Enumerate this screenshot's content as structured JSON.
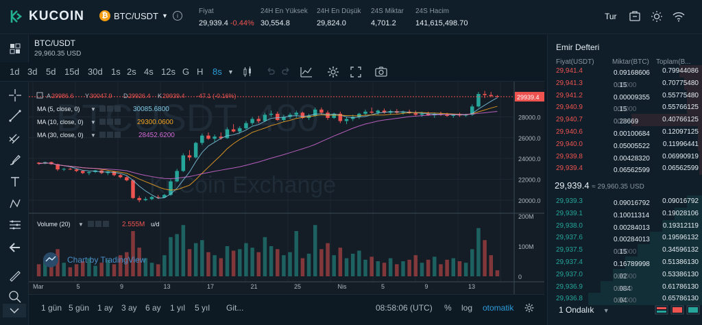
{
  "header": {
    "logo": "KUCOIN",
    "pair": "BTC/USDT",
    "coin_glyph": "₿",
    "stats": [
      {
        "label": "Fiyat",
        "value": "29,939.4",
        "change": "-0.44%"
      },
      {
        "label": "24H En Yüksek",
        "value": "30,554.8"
      },
      {
        "label": "24H En Düşük",
        "value": "29,824.0"
      },
      {
        "label": "24S Miktar",
        "value": "4,701.2"
      },
      {
        "label": "24S Hacim",
        "value": "141,615,498.70"
      }
    ],
    "language": "Tur",
    "icons": [
      "orders-icon",
      "theme-sun-icon",
      "wifi-icon"
    ]
  },
  "chart_header": {
    "symbol": "BTC/USDT",
    "price": "29,960.35 USD"
  },
  "timeframes": [
    "1d",
    "3d",
    "5d",
    "15d",
    "30d",
    "1s",
    "2s",
    "4s",
    "12s",
    "G",
    "H",
    "8s"
  ],
  "active_timeframe": "8s",
  "chart_overlay": {
    "ohlc": {
      "A": "29986.6",
      "Y": "30047.9",
      "D": "29926.4",
      "K": "29939.4",
      "chg": "-47.1 (-0.16%)"
    },
    "ma": [
      {
        "label": "MA (5, close, 0)",
        "value": "30085.6800",
        "color": "#7ec8e3"
      },
      {
        "label": "MA (10, close, 0)",
        "value": "29300.0600",
        "color": "#f5a623"
      },
      {
        "label": "MA (30, close, 0)",
        "value": "28452.6200",
        "color": "#d36ad6"
      }
    ],
    "volume_label": "Volume (20)",
    "volume_value": "2.555M",
    "volume_unit": "u/d",
    "watermark_main": "BTCUSDT, 480",
    "watermark_sub": "KuCoin Exchange",
    "tv_label": "Chart by TradingView",
    "last_price_tag": "29939.4"
  },
  "chart_data": {
    "type": "candlestick",
    "ylim": [
      19000,
      30600
    ],
    "y_ticks": [
      "28000.0",
      "26000.0",
      "24000.0",
      "22000.0",
      "20000.0"
    ],
    "volume_ticks": [
      "200M",
      "100M",
      "0"
    ],
    "x_ticks": [
      "Mar",
      "5",
      "9",
      "13",
      "17",
      "21",
      "25",
      "Nis",
      "5",
      "9",
      "13"
    ],
    "candles": [
      [
        23600,
        23650,
        23400,
        23500
      ],
      [
        23500,
        23700,
        23450,
        23650
      ],
      [
        23650,
        23700,
        23400,
        23450
      ],
      [
        23450,
        23500,
        22800,
        22950
      ],
      [
        22950,
        23100,
        22800,
        23000
      ],
      [
        23000,
        23100,
        22900,
        22950
      ],
      [
        22950,
        23000,
        22700,
        22800
      ],
      [
        22800,
        22900,
        22500,
        22600
      ],
      [
        22600,
        22750,
        22400,
        22700
      ],
      [
        22700,
        22900,
        22600,
        22850
      ],
      [
        22850,
        22900,
        22500,
        22600
      ],
      [
        22600,
        22800,
        22400,
        22750
      ],
      [
        22750,
        22800,
        22300,
        22400
      ],
      [
        22400,
        22500,
        22100,
        22200
      ],
      [
        22200,
        22300,
        21800,
        21900
      ],
      [
        21900,
        22000,
        20100,
        20200
      ],
      [
        20200,
        20400,
        19800,
        20000
      ],
      [
        20000,
        20300,
        19900,
        20100
      ],
      [
        20100,
        20400,
        20000,
        20300
      ],
      [
        20300,
        20500,
        20100,
        20250
      ],
      [
        20250,
        20600,
        20200,
        20500
      ],
      [
        20500,
        22000,
        20400,
        21800
      ],
      [
        21800,
        23000,
        21700,
        22800
      ],
      [
        22800,
        24500,
        22700,
        24300
      ],
      [
        24300,
        24800,
        23800,
        24100
      ],
      [
        24100,
        25600,
        24000,
        25500
      ],
      [
        25500,
        26400,
        25300,
        26200
      ],
      [
        26200,
        26500,
        25800,
        25900
      ],
      [
        25900,
        26300,
        25600,
        26100
      ],
      [
        26100,
        26500,
        25800,
        25950
      ],
      [
        25950,
        27000,
        25900,
        26800
      ],
      [
        26800,
        27300,
        26500,
        26600
      ],
      [
        26600,
        27100,
        26400,
        26900
      ],
      [
        26900,
        27600,
        26800,
        27400
      ],
      [
        27400,
        28000,
        27200,
        27800
      ],
      [
        27800,
        28100,
        27400,
        27600
      ],
      [
        27600,
        28400,
        27500,
        28200
      ],
      [
        28200,
        28600,
        28000,
        28300
      ],
      [
        28300,
        28500,
        27600,
        27700
      ],
      [
        27700,
        28200,
        27500,
        28000
      ],
      [
        28000,
        28400,
        27800,
        28200
      ],
      [
        28200,
        28600,
        27900,
        28400
      ],
      [
        28400,
        28500,
        27800,
        27900
      ],
      [
        27900,
        28300,
        27700,
        28100
      ],
      [
        28100,
        28900,
        28000,
        28700
      ],
      [
        28700,
        28900,
        28200,
        28400
      ],
      [
        28400,
        28600,
        27700,
        27900
      ],
      [
        27900,
        28400,
        27800,
        28300
      ],
      [
        28300,
        28500,
        27400,
        27600
      ],
      [
        27600,
        28000,
        27300,
        27800
      ],
      [
        27800,
        28200,
        27600,
        28000
      ],
      [
        28000,
        28400,
        27800,
        28300
      ],
      [
        28300,
        28700,
        28100,
        28500
      ],
      [
        28500,
        28900,
        28300,
        28400
      ],
      [
        28400,
        28700,
        28200,
        28600
      ],
      [
        28600,
        28800,
        28300,
        28400
      ],
      [
        28400,
        28700,
        28200,
        28550
      ],
      [
        28550,
        28750,
        28300,
        28400
      ],
      [
        28400,
        28600,
        28200,
        28500
      ],
      [
        28500,
        28700,
        28300,
        28350
      ],
      [
        28350,
        28600,
        28100,
        28200
      ],
      [
        28200,
        28500,
        28000,
        28300
      ],
      [
        28300,
        28500,
        28100,
        28150
      ],
      [
        28150,
        28400,
        27900,
        28300
      ],
      [
        28300,
        28500,
        28100,
        28250
      ],
      [
        28250,
        28400,
        28000,
        28100
      ],
      [
        28100,
        28300,
        27900,
        28200
      ],
      [
        28200,
        28400,
        28000,
        28150
      ],
      [
        28150,
        28300,
        28000,
        28200
      ],
      [
        28200,
        29200,
        28100,
        29000
      ],
      [
        29000,
        30400,
        28900,
        30200
      ],
      [
        30200,
        30500,
        29800,
        30100
      ],
      [
        30100,
        30400,
        29900,
        30000
      ],
      [
        30000,
        30100,
        29850,
        29939
      ]
    ],
    "volumes": [
      40,
      55,
      35,
      90,
      45,
      30,
      40,
      50,
      60,
      35,
      45,
      55,
      40,
      70,
      80,
      150,
      95,
      60,
      45,
      40,
      70,
      130,
      140,
      170,
      90,
      110,
      120,
      80,
      70,
      60,
      100,
      85,
      90,
      110,
      95,
      80,
      130,
      100,
      90,
      70,
      80,
      150,
      60,
      75,
      170,
      90,
      110,
      70,
      95,
      60,
      75,
      85,
      55,
      65,
      50,
      45,
      60,
      40,
      50,
      55,
      70,
      45,
      55,
      65,
      40,
      55,
      60,
      50,
      45,
      90,
      160,
      120,
      70,
      20
    ]
  },
  "bottom_bar": {
    "ranges": [
      "1 gün",
      "5 gün",
      "1 ay",
      "3 ay",
      "6 ay",
      "1 yıl",
      "5 yıl",
      "Git..."
    ],
    "time": "08:58:06 (UTC)",
    "pct": "%",
    "log": "log",
    "auto": "otomatik"
  },
  "order_book": {
    "title": "Emir Defteri",
    "headers": [
      "Fiyat(USDT)",
      "Miktar(BTC)",
      "Toplam(B..."
    ],
    "asks": [
      {
        "price": "29,941.4",
        "qty": "0.09168606",
        "qty_zeros": "",
        "total": "0.79944086"
      },
      {
        "price": "29,941.3",
        "qty": "0.15",
        "qty_zeros": "000000",
        "total": "0.70775480"
      },
      {
        "price": "29,941.2",
        "qty": "0.00009355",
        "qty_zeros": "",
        "total": "0.55775480"
      },
      {
        "price": "29,940.9",
        "qty": "0.15",
        "qty_zeros": "000000",
        "total": "0.55766125"
      },
      {
        "price": "29,940.7",
        "qty": "0.28669",
        "qty_zeros": "000",
        "total": "0.40766125"
      },
      {
        "price": "29,940.6",
        "qty": "0.00100684",
        "qty_zeros": "",
        "total": "0.12097125"
      },
      {
        "price": "29,940.0",
        "qty": "0.05005522",
        "qty_zeros": "",
        "total": "0.11996441"
      },
      {
        "price": "29,939.8",
        "qty": "0.00428320",
        "qty_zeros": "",
        "total": "0.06990919"
      },
      {
        "price": "29,939.4",
        "qty": "0.06562599",
        "qty_zeros": "",
        "total": "0.06562599"
      }
    ],
    "ask_depth": [
      0.15,
      0.12,
      0.1,
      0.1,
      0.46,
      0.03,
      0.03,
      0.02,
      0.02
    ],
    "mid": {
      "price": "29,939.4",
      "sub": "≈ 29,960.35 USD"
    },
    "bids": [
      {
        "price": "29,939.3",
        "qty": "0.09016792",
        "qty_zeros": "",
        "total": "0.09016792"
      },
      {
        "price": "29,939.1",
        "qty": "0.10011314",
        "qty_zeros": "",
        "total": "0.19028106"
      },
      {
        "price": "29,938.0",
        "qty": "0.00284013",
        "qty_zeros": "",
        "total": "0.19312119"
      },
      {
        "price": "29,937.6",
        "qty": "0.00284013",
        "qty_zeros": "",
        "total": "0.19596132"
      },
      {
        "price": "29,937.5",
        "qty": "0.15",
        "qty_zeros": "000000",
        "total": "0.34596132"
      },
      {
        "price": "29,937.4",
        "qty": "0.16789998",
        "qty_zeros": "",
        "total": "0.51386130"
      },
      {
        "price": "29,937.0",
        "qty": "0.02",
        "qty_zeros": "000000",
        "total": "0.53386130"
      },
      {
        "price": "29,936.9",
        "qty": "0.084",
        "qty_zeros": "00000",
        "total": "0.61786130"
      },
      {
        "price": "29,936.8",
        "qty": "0.04",
        "qty_zeros": "000000",
        "total": "0.65786130"
      }
    ],
    "decimals": "1 Ondalık"
  },
  "colors": {
    "up": "#26a69a",
    "down": "#ef5350",
    "accent": "#2d9cdb"
  }
}
